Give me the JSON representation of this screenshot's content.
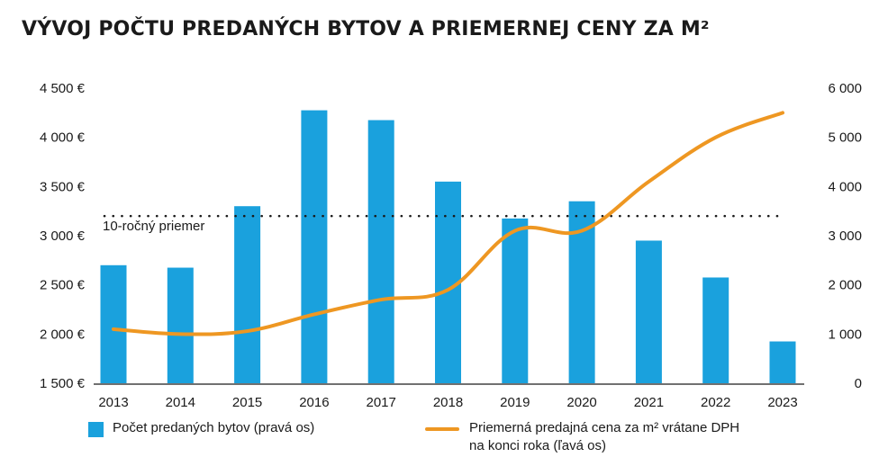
{
  "title": "VÝVOJ POČTU PREDANÝCH BYTOV A PRIEMERNEJ CENY ZA M²",
  "colors": {
    "bar": "#1aa1dd",
    "line": "#ee9722",
    "text": "#1a1a1a",
    "average_line": "#1a1a1a"
  },
  "chart_data": {
    "type": "bar+line",
    "categories": [
      "2013",
      "2014",
      "2015",
      "2016",
      "2017",
      "2018",
      "2019",
      "2020",
      "2021",
      "2022",
      "2023"
    ],
    "series": [
      {
        "name": "Počet predaných bytov (pravá os)",
        "type": "bar",
        "axis": "right",
        "values": [
          2400,
          2350,
          3600,
          5550,
          5350,
          4100,
          3350,
          3700,
          2900,
          2150,
          850
        ]
      },
      {
        "name": "Priemerná predajná cena za m² vrátane DPH na konci roka (ľavá os)",
        "type": "line",
        "axis": "left",
        "values": [
          2050,
          2000,
          2030,
          2200,
          2350,
          2450,
          3050,
          3050,
          3550,
          4000,
          4250
        ]
      }
    ],
    "left_axis": {
      "ticks": [
        1500,
        2000,
        2500,
        3000,
        3500,
        4000,
        4500
      ],
      "tick_labels": [
        "1 500 €",
        "2 000 €",
        "2 500 €",
        "3 000 €",
        "3 500 €",
        "4 000 €",
        "4 500 €"
      ],
      "range": [
        1500,
        4500
      ]
    },
    "right_axis": {
      "ticks": [
        0,
        1000,
        2000,
        3000,
        4000,
        5000,
        6000
      ],
      "tick_labels": [
        "0",
        "1 000",
        "2 000",
        "3 000",
        "4 000",
        "5 000",
        "6 000"
      ],
      "range": [
        0,
        6000
      ]
    },
    "average": {
      "label": "10-ročný priemer",
      "value_right_axis": 3400
    },
    "grid": false,
    "legend_position": "bottom"
  },
  "legend": {
    "bars": "Počet predaných bytov (pravá os)",
    "line_1": "Priemerná predajná cena za m² vrátane DPH",
    "line_2": "na konci roka (ľavá os)"
  }
}
